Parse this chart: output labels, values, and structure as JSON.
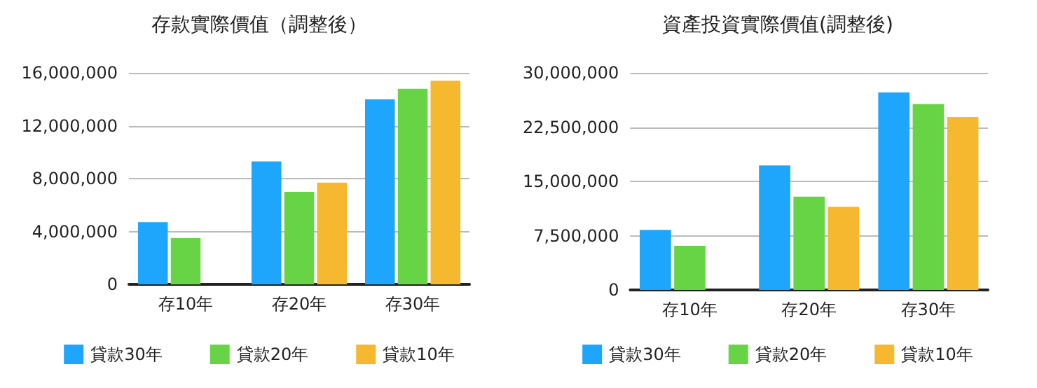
{
  "chart_data": [
    {
      "type": "bar",
      "title": "存款實際價值（調整後）",
      "categories": [
        "存10年",
        "存20年",
        "存30年"
      ],
      "series": [
        {
          "name": "貸款30年",
          "color": "#1ea5fc",
          "values": [
            4700000,
            9300000,
            14000000
          ]
        },
        {
          "name": "貸款20年",
          "color": "#66d444",
          "values": [
            3500000,
            7000000,
            14800000
          ]
        },
        {
          "name": "貸款10年",
          "color": "#f5b82e",
          "values": [
            null,
            7700000,
            15400000
          ]
        }
      ],
      "ylim": [
        0,
        16000000
      ],
      "yticks": [
        0,
        {
          "value": 4000000,
          "label": "4,000,000"
        },
        {
          "value": 8000000,
          "label": "8,000,000"
        },
        {
          "value": 12000000,
          "label": "12,000,000"
        },
        {
          "value": 16000000,
          "label": "16,000,000"
        }
      ],
      "grid": "y",
      "legend": "bottom"
    },
    {
      "type": "bar",
      "title": "資產投資實際價值(調整後)",
      "categories": [
        "存10年",
        "存20年",
        "存30年"
      ],
      "series": [
        {
          "name": "貸款30年",
          "color": "#1ea5fc",
          "values": [
            8300000,
            17200000,
            27300000
          ]
        },
        {
          "name": "貸款20年",
          "color": "#66d444",
          "values": [
            6100000,
            12900000,
            25700000
          ]
        },
        {
          "name": "貸款10年",
          "color": "#f5b82e",
          "values": [
            null,
            11500000,
            23900000
          ]
        }
      ],
      "ylim": [
        0,
        30000000
      ],
      "yticks": [
        0,
        {
          "value": 7500000,
          "label": "7,500,000"
        },
        {
          "value": 15000000,
          "label": "15,000,000"
        },
        {
          "value": 22500000,
          "label": "22,500,000"
        },
        {
          "value": 30000000,
          "label": "30,000,000"
        }
      ],
      "grid": "y",
      "legend": "bottom"
    }
  ]
}
